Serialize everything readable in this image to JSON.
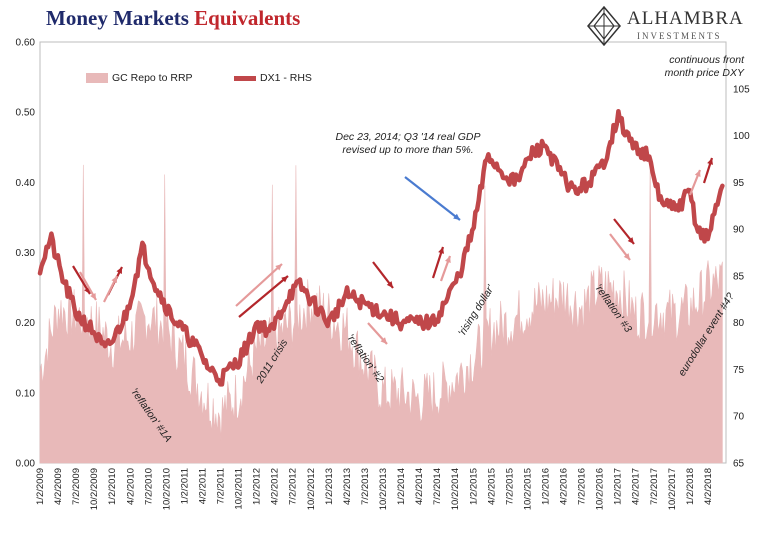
{
  "title": {
    "part1": "Money Markets ",
    "part2": "Equivalents"
  },
  "logo": {
    "name": "ALHAMBRA",
    "sub": "INVESTMENTS"
  },
  "colors": {
    "area": "#e8b9b9",
    "line": "#c0474a",
    "title_blue": "#1f2a6b",
    "title_red": "#c0272d",
    "arrow_dark": "#b3262b",
    "arrow_light": "#e59a9a"
  },
  "legend": [
    {
      "label": "GC Repo to RRP",
      "type": "area",
      "color": "#e8b9b9"
    },
    {
      "label": "DX1 - RHS",
      "type": "line",
      "color": "#c0474a"
    }
  ],
  "annotations": {
    "dec2014": "Dec 23, 2014; Q3 '14 real GDP revised up to more than 5%.",
    "dxy": "continuous front month price DXY",
    "reflation1a": "'reflation' #1A",
    "crisis2011": "2011 crisis",
    "reflation2": "'reflation' #2",
    "rising_dollar": "'rising dollar'",
    "reflation3": "'reflation' #3",
    "eurodollar": "eurodollar event #4?"
  },
  "chart_data": {
    "type": "area",
    "left_axis": {
      "ylim": [
        0,
        0.6
      ],
      "ticks": [
        "0.00",
        "0.10",
        "0.20",
        "0.30",
        "0.40",
        "0.50",
        "0.60"
      ]
    },
    "right_axis": {
      "ylim": [
        65,
        110
      ],
      "ticks": [
        "65",
        "70",
        "75",
        "80",
        "85",
        "90",
        "95",
        "100",
        "105"
      ]
    },
    "x_labels": [
      "1/2/2009",
      "4/2/2009",
      "7/2/2009",
      "10/2/2009",
      "1/2/2010",
      "4/2/2010",
      "7/2/2010",
      "10/2/2010",
      "1/2/2011",
      "4/2/2011",
      "7/2/2011",
      "10/2/2011",
      "1/2/2012",
      "4/2/2012",
      "7/2/2012",
      "10/2/2012",
      "1/2/2013",
      "4/2/2013",
      "7/2/2013",
      "10/2/2013",
      "1/2/2014",
      "4/2/2014",
      "7/2/2014",
      "10/2/2014",
      "1/2/2015",
      "4/2/2015",
      "7/2/2015",
      "10/2/2015",
      "1/2/2016",
      "4/2/2016",
      "7/2/2016",
      "10/2/2016",
      "1/2/2017",
      "4/2/2017",
      "7/2/2017",
      "10/2/2017",
      "1/2/2018",
      "4/2/2018"
    ],
    "series": [
      {
        "name": "GC Repo to RRP",
        "axis": "left",
        "x": [
          2009.0,
          2009.25,
          2009.5,
          2009.75,
          2010.0,
          2010.25,
          2010.5,
          2010.75,
          2011.0,
          2011.25,
          2011.5,
          2011.75,
          2012.0,
          2012.25,
          2012.5,
          2012.75,
          2013.0,
          2013.25,
          2013.5,
          2013.75,
          2014.0,
          2014.25,
          2014.5,
          2014.75,
          2015.0,
          2015.25,
          2015.5,
          2015.75,
          2016.0,
          2016.25,
          2016.5,
          2016.75,
          2017.0,
          2017.25,
          2017.5,
          2017.75,
          2018.0,
          2018.25,
          2018.45
        ],
        "y": [
          0.13,
          0.22,
          0.21,
          0.2,
          0.17,
          0.18,
          0.21,
          0.19,
          0.15,
          0.1,
          0.07,
          0.1,
          0.16,
          0.18,
          0.2,
          0.23,
          0.21,
          0.19,
          0.14,
          0.1,
          0.1,
          0.09,
          0.1,
          0.12,
          0.15,
          0.19,
          0.2,
          0.22,
          0.23,
          0.24,
          0.22,
          0.25,
          0.25,
          0.21,
          0.22,
          0.21,
          0.22,
          0.25,
          0.26
        ]
      },
      {
        "name": "DX1 - RHS",
        "axis": "right",
        "x": [
          2009.0,
          2009.15,
          2009.3,
          2009.5,
          2009.75,
          2009.9,
          2010.0,
          2010.2,
          2010.42,
          2010.6,
          2010.8,
          2011.0,
          2011.2,
          2011.35,
          2011.5,
          2011.75,
          2011.9,
          2012.0,
          2012.2,
          2012.45,
          2012.6,
          2012.8,
          2013.0,
          2013.25,
          2013.5,
          2013.75,
          2014.0,
          2014.2,
          2014.45,
          2014.6,
          2014.8,
          2015.0,
          2015.2,
          2015.4,
          2015.6,
          2015.8,
          2016.0,
          2016.2,
          2016.4,
          2016.6,
          2016.8,
          2017.0,
          2017.2,
          2017.4,
          2017.6,
          2017.8,
          2018.0,
          2018.1,
          2018.25,
          2018.45
        ],
        "y": [
          86,
          89,
          85,
          81,
          79,
          77,
          78,
          81,
          88,
          84,
          81,
          79,
          77,
          75,
          74,
          76,
          78,
          80,
          79,
          83,
          84,
          82,
          80,
          83,
          82,
          81,
          80,
          80,
          80,
          82,
          85,
          90,
          98,
          96,
          95,
          98,
          99,
          96,
          94,
          95,
          97,
          102,
          99,
          98,
          93,
          92,
          94,
          90,
          89,
          95
        ]
      }
    ]
  }
}
